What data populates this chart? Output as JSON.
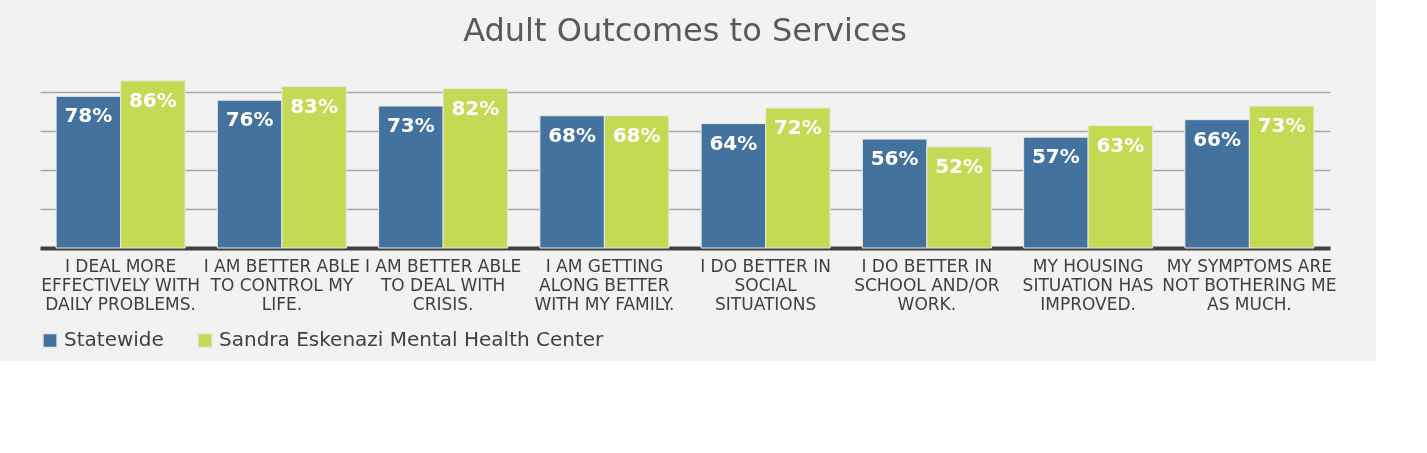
{
  "chart_data": {
    "type": "bar",
    "title": "Adult Outcomes to Services",
    "categories": [
      "I DEAL MORE EFFECTIVELY WITH DAILY PROBLEMS.",
      "I AM BETTER ABLE TO CONTROL MY LIFE.",
      "I AM BETTER ABLE TO DEAL WITH CRISIS.",
      "I AM GETTING ALONG BETTER WITH MY FAMILY.",
      "I DO BETTER IN SOCIAL SITUATIONS",
      "I DO BETTER IN SCHOOL AND/OR WORK.",
      "MY HOUSING SITUATION HAS IMPROVED.",
      "MY SYMPTOMS ARE NOT BOTHERING ME AS MUCH."
    ],
    "series": [
      {
        "name": "Statewide",
        "color": "#44729f",
        "values": [
          78,
          76,
          73,
          68,
          64,
          56,
          57,
          66
        ],
        "value_labels": [
          "78%",
          "76%",
          "73%",
          "68%",
          "64%",
          "56%",
          "57%",
          "66%"
        ]
      },
      {
        "name": "Sandra Eskenazi Mental Health Center",
        "color": "#c5da54",
        "values": [
          86,
          83,
          82,
          68,
          72,
          52,
          63,
          73
        ],
        "value_labels": [
          "86%",
          "83%",
          "82%",
          "68%",
          "72%",
          "52%",
          "63%",
          "73%"
        ]
      }
    ],
    "grid": "y",
    "tick_labels": "x",
    "legend": "bottom"
  }
}
